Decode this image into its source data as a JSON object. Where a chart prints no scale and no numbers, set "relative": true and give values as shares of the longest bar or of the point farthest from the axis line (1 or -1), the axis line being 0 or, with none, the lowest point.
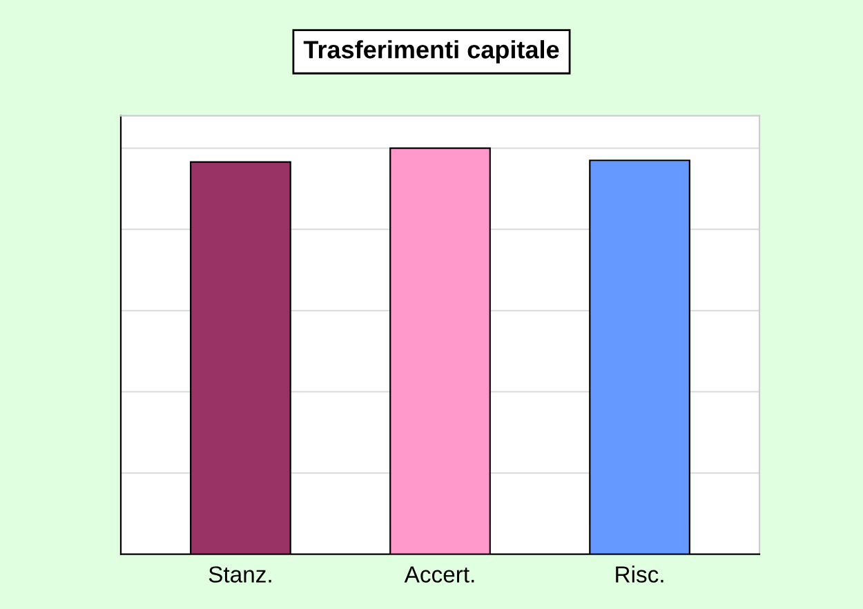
{
  "chart_data": {
    "type": "bar",
    "title": "Trasferimenti capitale",
    "categories": [
      "Stanz.",
      "Accert.",
      "Risc."
    ],
    "values": [
      0.966,
      1,
      0.97
    ],
    "colors": [
      "#993366",
      "#ff99cc",
      "#6699ff"
    ],
    "relative": true,
    "grid": "y"
  }
}
